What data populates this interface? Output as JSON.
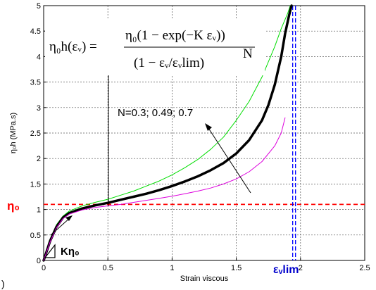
{
  "chart_data": {
    "type": "line",
    "xlabel": "Strain viscous",
    "ylabel": "η₀h (MPa.s)",
    "xlim": [
      0,
      2.5
    ],
    "ylim": [
      0,
      5
    ],
    "xticks": [
      "0",
      "0.5",
      "1",
      "1.5",
      "2",
      "2.5"
    ],
    "yticks": [
      "0",
      "0.5",
      "1",
      "1.5",
      "2",
      "2.5",
      "3",
      "3.5",
      "4",
      "4.5",
      "5"
    ],
    "grid": true,
    "series": [
      {
        "color": "#00dd00",
        "width": 1,
        "x": [
          0,
          0.05,
          0.1,
          0.15,
          0.2,
          0.3,
          0.4,
          0.5,
          0.6,
          0.7,
          0.8,
          0.9,
          1.0,
          1.1,
          1.2,
          1.3,
          1.4,
          1.5,
          1.6,
          1.7,
          1.8,
          1.85,
          1.9,
          1.92
        ],
        "y": [
          0,
          0.4,
          0.7,
          0.87,
          0.97,
          1.07,
          1.14,
          1.2,
          1.28,
          1.36,
          1.46,
          1.56,
          1.68,
          1.82,
          1.98,
          2.18,
          2.42,
          2.75,
          3.12,
          3.6,
          4.2,
          4.55,
          4.85,
          5.0
        ]
      },
      {
        "color": "#000000",
        "width": 3.5,
        "x": [
          0,
          0.05,
          0.1,
          0.15,
          0.2,
          0.3,
          0.4,
          0.5,
          0.6,
          0.7,
          0.8,
          0.9,
          1.0,
          1.1,
          1.2,
          1.3,
          1.4,
          1.5,
          1.6,
          1.7,
          1.75,
          1.8,
          1.85,
          1.88,
          1.91,
          1.93
        ],
        "y": [
          0,
          0.38,
          0.66,
          0.84,
          0.93,
          1.02,
          1.08,
          1.13,
          1.19,
          1.25,
          1.31,
          1.38,
          1.46,
          1.55,
          1.65,
          1.77,
          1.91,
          2.1,
          2.36,
          2.75,
          3.05,
          3.45,
          4.0,
          4.45,
          4.8,
          5.0
        ]
      },
      {
        "color": "#dd00dd",
        "width": 1,
        "x": [
          0,
          0.05,
          0.1,
          0.15,
          0.2,
          0.3,
          0.4,
          0.5,
          0.6,
          0.7,
          0.8,
          0.9,
          1.0,
          1.1,
          1.2,
          1.3,
          1.4,
          1.5,
          1.6,
          1.7,
          1.8,
          1.85,
          1.88
        ],
        "y": [
          0,
          0.36,
          0.64,
          0.82,
          0.91,
          0.99,
          1.04,
          1.07,
          1.1,
          1.14,
          1.18,
          1.22,
          1.26,
          1.31,
          1.36,
          1.42,
          1.5,
          1.6,
          1.74,
          1.94,
          2.25,
          2.5,
          2.8
        ]
      }
    ],
    "reference_lines": [
      {
        "axis": "y",
        "value": 1.1,
        "color": "#ff0000",
        "style": "dashed",
        "label": "η₀"
      },
      {
        "axis": "x",
        "value": 1.95,
        "color": "#0000ff",
        "style": "dashed",
        "label": "εᵥlim"
      }
    ],
    "annotations": {
      "n_values": "N=0.3; 0.49; 0.7",
      "slope": "Kη₀"
    },
    "formula": {
      "lhs": "η₀h(εᵥ) =",
      "numerator": "η₀(1 − exp(−K εᵥ))",
      "denominator": "(1 − εᵥ/εᵥlim)",
      "exponent": "N"
    },
    "corner_glyph": ")"
  }
}
